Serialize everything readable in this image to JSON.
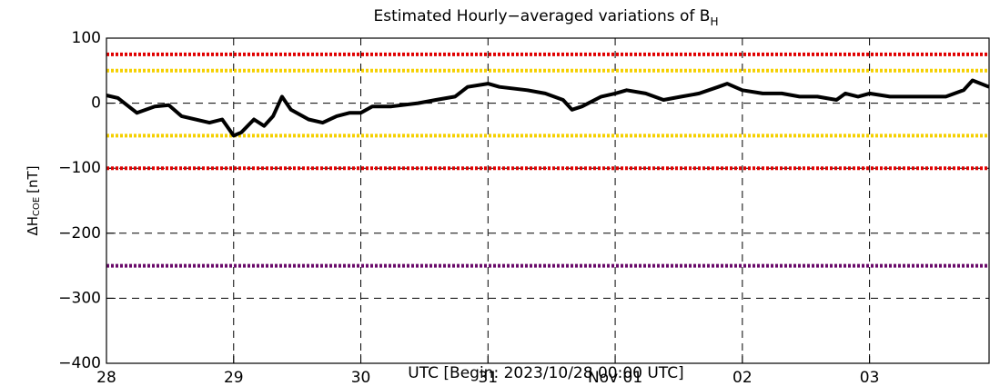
{
  "chart_data": {
    "type": "line",
    "title": "Estimated Hourly−averaged variations of B",
    "title_subscript": "H",
    "y_label": "ΔH",
    "y_label_subscript": "COE",
    "y_label_unit": "[nT]",
    "x_label": "UTC [Begin: 2023/10/28 00:00 UTC]",
    "x": [
      0,
      0.09,
      0.24,
      0.38,
      0.49,
      0.59,
      0.81,
      0.91,
      1.0,
      1.06,
      1.16,
      1.24,
      1.31,
      1.38,
      1.45,
      1.59,
      1.7,
      1.81,
      1.91,
      2.0,
      2.09,
      2.24,
      2.45,
      2.59,
      2.74,
      2.84,
      3.0,
      3.09,
      3.31,
      3.45,
      3.59,
      3.66,
      3.74,
      3.89,
      4.0,
      4.09,
      4.24,
      4.38,
      4.52,
      4.66,
      4.81,
      4.88,
      5.0,
      5.16,
      5.31,
      5.45,
      5.59,
      5.74,
      5.81,
      5.91,
      6.0,
      6.16,
      6.31,
      6.6,
      6.74,
      6.81,
      6.94
    ],
    "values": [
      12,
      8,
      -15,
      -5,
      -3,
      -20,
      -30,
      -25,
      -50,
      -45,
      -25,
      -35,
      -20,
      10,
      -10,
      -25,
      -30,
      -20,
      -15,
      -15,
      -5,
      -5,
      0,
      5,
      10,
      25,
      30,
      25,
      20,
      15,
      5,
      -10,
      -5,
      10,
      15,
      20,
      15,
      5,
      10,
      15,
      25,
      30,
      20,
      15,
      15,
      10,
      10,
      5,
      15,
      10,
      15,
      10,
      10,
      10,
      20,
      35,
      25
    ],
    "color": "#000000",
    "xlim": [
      0,
      6.94
    ],
    "xticks": [
      {
        "value": 0,
        "label": "28"
      },
      {
        "value": 1,
        "label": "29"
      },
      {
        "value": 2,
        "label": "30"
      },
      {
        "value": 3,
        "label": "31"
      },
      {
        "value": 4,
        "label": "Nov 01"
      },
      {
        "value": 5,
        "label": "02"
      },
      {
        "value": 6,
        "label": "03"
      }
    ],
    "ylim": [
      -400,
      100
    ],
    "yticks": [
      {
        "value": -400,
        "label": "−400"
      },
      {
        "value": -300,
        "label": "−300"
      },
      {
        "value": -200,
        "label": "−200"
      },
      {
        "value": -100,
        "label": "−100"
      },
      0,
      100
    ],
    "grid": true,
    "reference_lines": [
      {
        "value": 75,
        "color": "#e00000"
      },
      {
        "value": 50,
        "color": "#f5d000"
      },
      {
        "value": -50,
        "color": "#f5d000"
      },
      {
        "value": -100,
        "color": "#e00000"
      },
      {
        "value": -250,
        "color": "#6a0a6a"
      }
    ]
  }
}
